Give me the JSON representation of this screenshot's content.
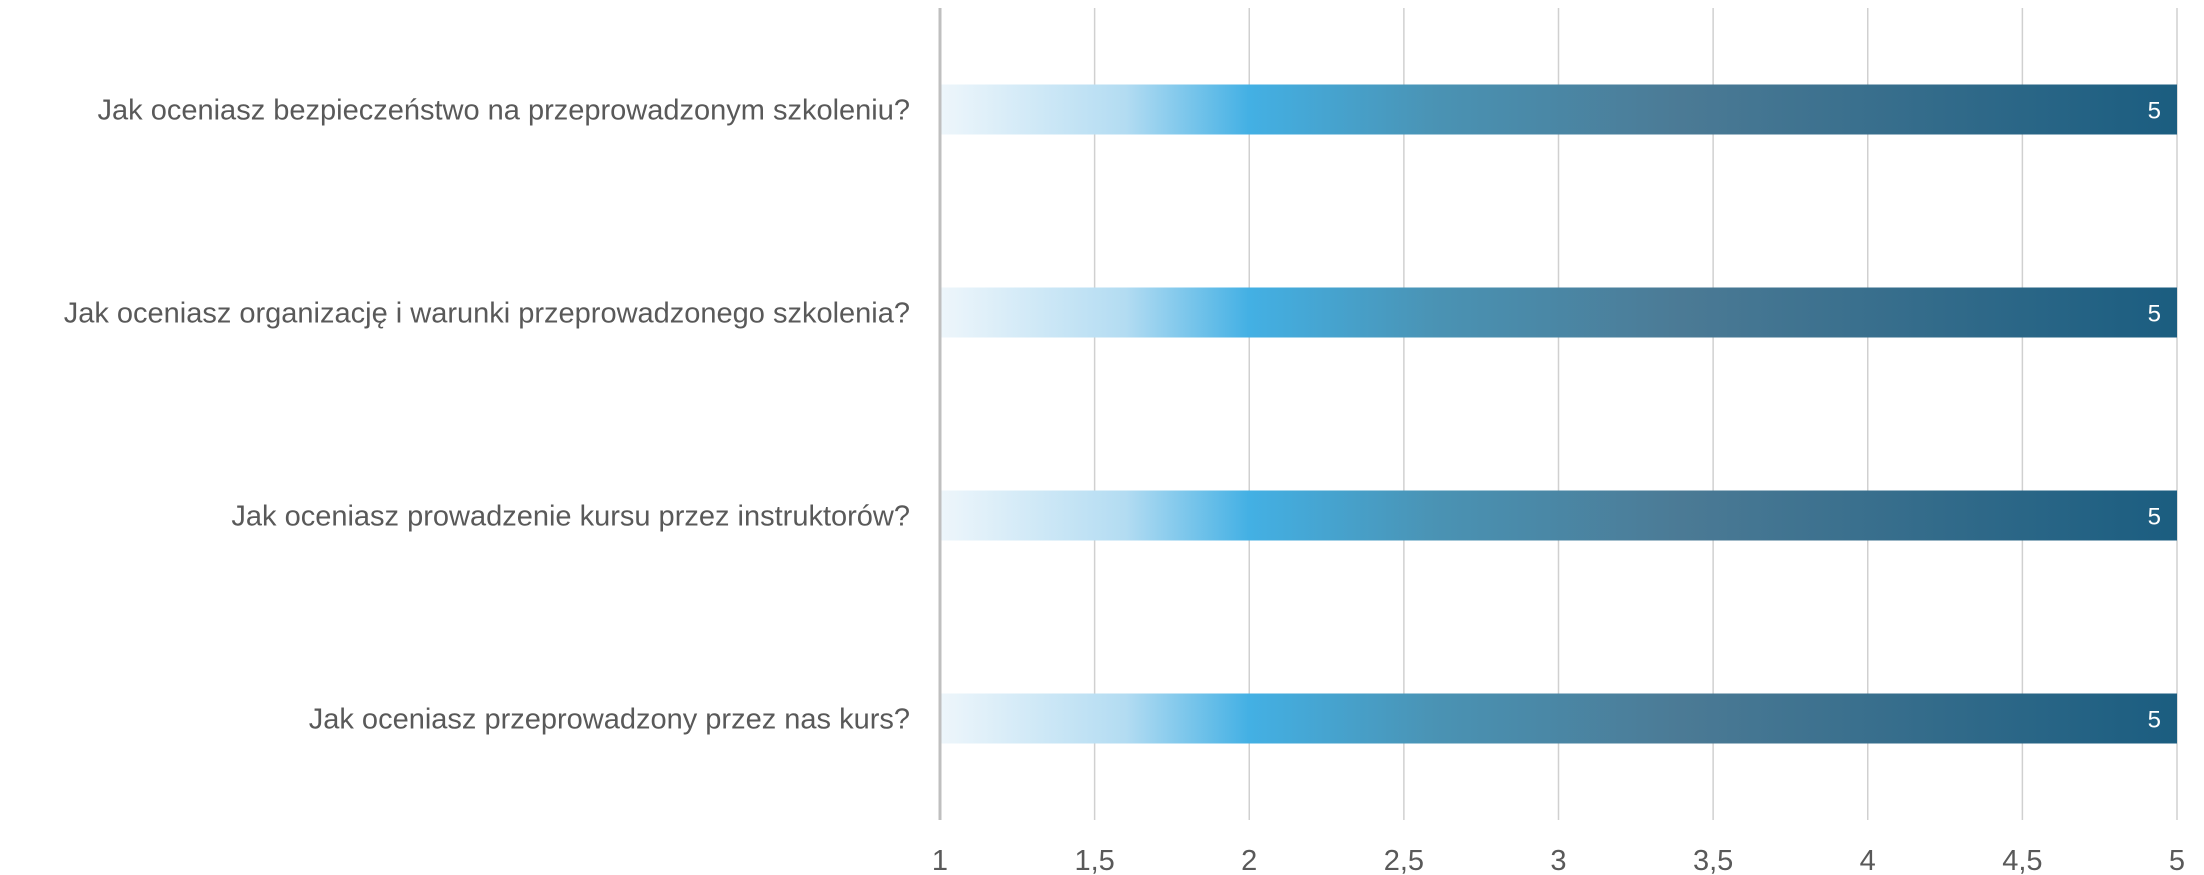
{
  "chart_data": {
    "type": "bar",
    "orientation": "horizontal",
    "title": "",
    "xlabel": "",
    "ylabel": "",
    "categories": [
      "Jak oceniasz bezpieczeństwo na przeprowadzonym szkoleniu?",
      "Jak oceniasz organizację i warunki przeprowadzonego szkolenia?",
      "Jak oceniasz prowadzenie kursu przez instruktorów?",
      "Jak oceniasz przeprowadzony przez nas kurs?"
    ],
    "values": [
      5,
      5,
      5,
      5
    ],
    "data_labels": [
      "5",
      "5",
      "5",
      "5"
    ],
    "xlim": [
      1,
      5
    ],
    "xticks": [
      1,
      1.5,
      2,
      2.5,
      3,
      3.5,
      4,
      4.5,
      5
    ],
    "xtick_labels": [
      "1",
      "1,5",
      "2",
      "2,5",
      "3",
      "3,5",
      "4",
      "4,5",
      "5"
    ],
    "grid": "vertical",
    "legend": "none",
    "colors": {
      "bar_gradient": [
        "#eef6fb",
        "#b3dcf2",
        "#43b0e4",
        "#4a93b4",
        "#4b7a95",
        "#1b5d80"
      ],
      "gridline": "#d0d0d0",
      "axis_line": "#bfbfbf",
      "text": "#595959",
      "data_label": "#ffffff"
    }
  }
}
